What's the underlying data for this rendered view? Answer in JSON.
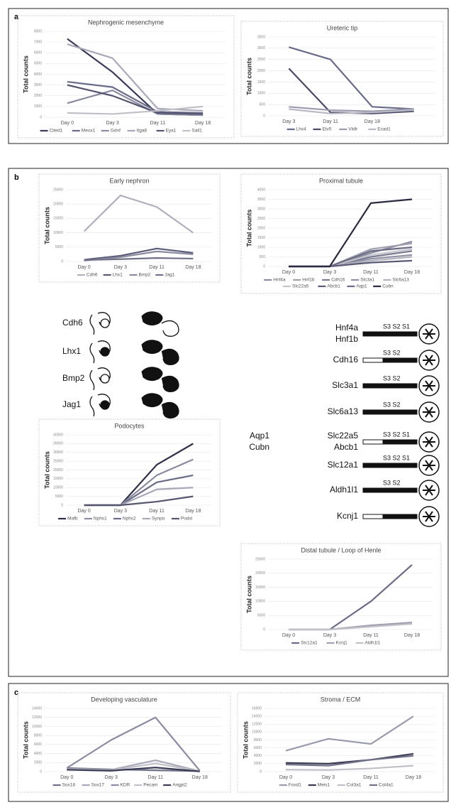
{
  "panel_labels": [
    "a",
    "b",
    "c"
  ],
  "chart_data": [
    {
      "type": "line",
      "title": "Nephrogenic mesenchyme",
      "ylabel": "Total counts",
      "categories": [
        "Day 0",
        "Day 3",
        "Day 11",
        "Day 18"
      ],
      "ylim": [
        0,
        8000
      ],
      "yticks": [
        0,
        1000,
        2000,
        3000,
        4000,
        5000,
        6000,
        7000,
        8000
      ],
      "grid": true,
      "series": [
        {
          "name": "Cited1",
          "color": "#3a3a5a",
          "values": [
            7300,
            4200,
            300,
            200
          ]
        },
        {
          "name": "Meox1",
          "color": "#6a6a8a",
          "values": [
            3300,
            2800,
            500,
            400
          ]
        },
        {
          "name": "Gdnf",
          "color": "#8a8aa0",
          "values": [
            1300,
            2500,
            300,
            200
          ]
        },
        {
          "name": "Itga8",
          "color": "#a8a8b8",
          "values": [
            6800,
            5500,
            800,
            600
          ]
        },
        {
          "name": "Eya1",
          "color": "#555570",
          "values": [
            3000,
            2000,
            400,
            300
          ]
        },
        {
          "name": "Sall1",
          "color": "#c0c0c8",
          "values": [
            400,
            300,
            600,
            1000
          ]
        }
      ]
    },
    {
      "type": "line",
      "title": "Ureteric tip",
      "ylabel": "Total counts",
      "categories": [
        "Day 3",
        "Day 11",
        "Day 18",
        null
      ],
      "ylim": [
        0,
        3500
      ],
      "yticks": [
        0,
        500,
        1000,
        1500,
        2000,
        2500,
        3000,
        3500
      ],
      "grid": true,
      "series": [
        {
          "name": "Lhx4",
          "color": "#6a6a8a",
          "values": [
            3050,
            2500,
            400,
            300
          ]
        },
        {
          "name": "Etv5",
          "color": "#4a4a68",
          "values": [
            2100,
            150,
            100,
            200
          ]
        },
        {
          "name": "Vldlr",
          "color": "#9a9aae",
          "values": [
            400,
            250,
            200,
            300
          ]
        },
        {
          "name": "Ecad1",
          "color": "#b8b8c4",
          "values": [
            300,
            100,
            150,
            250
          ]
        }
      ]
    },
    {
      "type": "line",
      "title": "Early nephron",
      "ylabel": "Total counts",
      "categories": [
        "Day 0",
        "Day 3",
        "Day 11",
        "Day 18"
      ],
      "ylim": [
        0,
        25000
      ],
      "yticks": [
        0,
        5000,
        10000,
        15000,
        20000,
        25000
      ],
      "grid": true,
      "series": [
        {
          "name": "Cdh6",
          "color": "#b0b0bc",
          "values": [
            10500,
            23000,
            19000,
            10000
          ]
        },
        {
          "name": "Lhx1",
          "color": "#5a5a78",
          "values": [
            600,
            2000,
            4500,
            3000
          ]
        },
        {
          "name": "Bmp2",
          "color": "#8a8aa0",
          "values": [
            300,
            1500,
            3500,
            2500
          ]
        },
        {
          "name": "Jag1",
          "color": "#707088",
          "values": [
            500,
            800,
            1200,
            1000
          ]
        }
      ]
    },
    {
      "type": "line",
      "title": "Proximal tubule",
      "ylabel": "Total counts",
      "categories": [
        "Day 0",
        "Day 3",
        "Day 11",
        "Day 18"
      ],
      "ylim": [
        0,
        4000
      ],
      "yticks": [
        0,
        500,
        1000,
        1500,
        2000,
        2500,
        3000,
        3500,
        4000
      ],
      "grid": true,
      "series": [
        {
          "name": "Hnf4a",
          "color": "#8a8aa0",
          "values": [
            0,
            0,
            700,
            1300
          ]
        },
        {
          "name": "Hnf1b",
          "color": "#a0a0b0",
          "values": [
            0,
            0,
            900,
            1200
          ]
        },
        {
          "name": "Cdh16",
          "color": "#7a7a90",
          "values": [
            0,
            0,
            500,
            800
          ]
        },
        {
          "name": "Slc3a1",
          "color": "#9090a4",
          "values": [
            0,
            0,
            400,
            600
          ]
        },
        {
          "name": "Slc6a13",
          "color": "#b4b4c0",
          "values": [
            0,
            0,
            300,
            500
          ]
        },
        {
          "name": "Slc22a5",
          "color": "#c4c4cc",
          "values": [
            0,
            0,
            600,
            900
          ]
        },
        {
          "name": "Abcb1",
          "color": "#5a5a74",
          "values": [
            0,
            0,
            200,
            300
          ]
        },
        {
          "name": "Aqp1",
          "color": "#6c6c84",
          "values": [
            0,
            0,
            800,
            1000
          ]
        },
        {
          "name": "Cubn",
          "color": "#2a2a40",
          "values": [
            0,
            0,
            3300,
            3500
          ]
        }
      ]
    },
    {
      "type": "line",
      "title": "Podocytes",
      "ylabel": "Total counts",
      "categories": [
        "Day 0",
        "Day 3",
        "Day 11",
        "Day 18"
      ],
      "ylim": [
        0,
        40000
      ],
      "yticks": [
        0,
        5000,
        10000,
        15000,
        20000,
        25000,
        30000,
        35000,
        40000
      ],
      "grid": true,
      "series": [
        {
          "name": "Mafb",
          "color": "#2e2e48",
          "values": [
            0,
            0,
            23000,
            35000
          ]
        },
        {
          "name": "Nphs1",
          "color": "#8a8aa0",
          "values": [
            0,
            0,
            17000,
            26000
          ]
        },
        {
          "name": "Nphs2",
          "color": "#6a6a84",
          "values": [
            0,
            0,
            13000,
            17000
          ]
        },
        {
          "name": "Synpo",
          "color": "#a8a8b8",
          "values": [
            0,
            0,
            9000,
            10000
          ]
        },
        {
          "name": "Podxl",
          "color": "#55556e",
          "values": [
            0,
            0,
            2000,
            5000
          ]
        }
      ]
    },
    {
      "type": "line",
      "title": "Distal tubule / Loop of Henle",
      "ylabel": "Total counts",
      "categories": [
        "Day 0",
        "Day 3",
        "Day 11",
        "Day 18"
      ],
      "ylim": [
        0,
        25000
      ],
      "yticks": [
        0,
        5000,
        10000,
        15000,
        20000,
        25000
      ],
      "grid": true,
      "series": [
        {
          "name": "Slc12a1",
          "color": "#6a6a86",
          "values": [
            0,
            0,
            10000,
            23000
          ]
        },
        {
          "name": "Kcnj1",
          "color": "#a0a0b0",
          "values": [
            0,
            0,
            1500,
            2500
          ]
        },
        {
          "name": "Aldh1l1",
          "color": "#c0c0c8",
          "values": [
            0,
            0,
            1000,
            2000
          ]
        }
      ]
    },
    {
      "type": "line",
      "title": "Developing vasculature",
      "ylabel": "Total counts",
      "categories": [
        "Day 0",
        "Day 3",
        "Day 11",
        "Day 18"
      ],
      "ylim": [
        0,
        14000
      ],
      "yticks": [
        0,
        2000,
        4000,
        6000,
        8000,
        10000,
        12000,
        14000
      ],
      "grid": true,
      "series": [
        {
          "name": "Sox18",
          "color": "#707088",
          "values": [
            800,
            500,
            300,
            100
          ]
        },
        {
          "name": "Sox17",
          "color": "#a8a8b8",
          "values": [
            600,
            400,
            2500,
            100
          ]
        },
        {
          "name": "KDR",
          "color": "#8a8aa2",
          "values": [
            800,
            7000,
            12000,
            200
          ]
        },
        {
          "name": "Pecam",
          "color": "#c0c0c8",
          "values": [
            500,
            300,
            1800,
            100
          ]
        },
        {
          "name": "Angpt2",
          "color": "#3a3a54",
          "values": [
            400,
            200,
            900,
            50
          ]
        }
      ]
    },
    {
      "type": "line",
      "title": "Stroma / ECM",
      "ylabel": "Total counts",
      "categories": [
        "Day 0",
        "Day 3",
        "Day 11",
        "Day 18"
      ],
      "ylim": [
        0,
        16000
      ],
      "yticks": [
        0,
        2000,
        4000,
        6000,
        8000,
        10000,
        12000,
        14000,
        16000
      ],
      "grid": true,
      "series": [
        {
          "name": "Foxd1",
          "color": "#9a9aae",
          "values": [
            5300,
            8300,
            7000,
            14000
          ]
        },
        {
          "name": "Meis1",
          "color": "#3a3a54",
          "values": [
            2200,
            2000,
            3000,
            4500
          ]
        },
        {
          "name": "Col3a1",
          "color": "#c0c0c8",
          "values": [
            500,
            400,
            800,
            1500
          ]
        },
        {
          "name": "Col4a1",
          "color": "#707088",
          "values": [
            1800,
            1500,
            3000,
            4000
          ]
        }
      ]
    }
  ],
  "nephron_genes": [
    "Cdh6",
    "Lhx1",
    "Bmp2",
    "Jag1"
  ],
  "tubule_genes": [
    {
      "left": null,
      "right": [
        "Hnf4a",
        "Hnf1b"
      ],
      "segments": "S3 S2 S1"
    },
    {
      "left": null,
      "right": [
        "Cdh16"
      ],
      "segments": "S3 S2"
    },
    {
      "left": null,
      "right": [
        "Slc3a1"
      ],
      "segments": "S3 S2"
    },
    {
      "left": null,
      "right": [
        "Slc6a13"
      ],
      "segments": "S3 S2"
    },
    {
      "left": [
        "Aqp1",
        "Cubn"
      ],
      "right": [
        "Slc22a5",
        "Abcb1"
      ],
      "segments": "S3 S2 S1"
    },
    {
      "left": null,
      "right": [
        "Slc12a1"
      ],
      "segments": "S3 S2 S1"
    },
    {
      "left": null,
      "right": [
        "Aldh1l1"
      ],
      "segments": "S3 S2"
    },
    {
      "left": null,
      "right": [
        "Kcnj1"
      ],
      "segments": null
    }
  ]
}
